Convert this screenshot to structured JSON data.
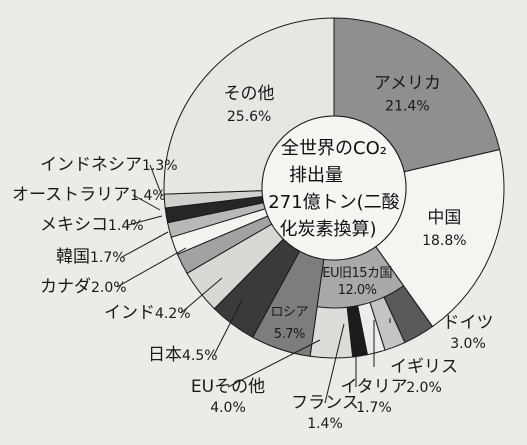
{
  "chart_data": {
    "type": "pie",
    "donut": true,
    "center_text": [
      "全世界のCO₂",
      "排出量",
      "271億トン(二酸",
      "化炭素換算)"
    ],
    "slices": [
      {
        "label": "アメリカ",
        "value": 21.4,
        "value_text": "21.4%",
        "color": "#8f8f8f"
      },
      {
        "label": "中国",
        "value": 18.8,
        "value_text": "18.8%",
        "color": "#f4f4f1"
      },
      {
        "label": "ドイツ",
        "value": 3.0,
        "value_text": "3.0%",
        "color": "#5a5a5a",
        "group": "EU旧15カ国"
      },
      {
        "label": "イギリス",
        "value": 2.0,
        "value_text": "2.0%",
        "color": "#c4c4c4",
        "group": "EU旧15カ国"
      },
      {
        "label": "イタリア",
        "value": 1.7,
        "value_text": "1.7%",
        "color": "#ececea",
        "group": "EU旧15カ国"
      },
      {
        "label": "フランス",
        "value": 1.4,
        "value_text": "1.4%",
        "color": "#1c1c1c",
        "group": "EU旧15カ国"
      },
      {
        "label": "EUその他",
        "value": 4.0,
        "value_text": "4.0%",
        "color": "#dcdcd9",
        "group": "EU旧15カ国"
      },
      {
        "label": "ロシア",
        "value": 5.7,
        "value_text": "5.7%",
        "color": "#7d7d7d"
      },
      {
        "label": "日本",
        "value": 4.5,
        "value_text": "4.5%",
        "color": "#3a3a3a"
      },
      {
        "label": "インド",
        "value": 4.2,
        "value_text": "4.2%",
        "color": "#d8d8d5"
      },
      {
        "label": "カナダ",
        "value": 2.0,
        "value_text": "2.0%",
        "color": "#a2a2a2"
      },
      {
        "label": "韓国",
        "value": 1.7,
        "value_text": "1.7%",
        "color": "#f3f3f0"
      },
      {
        "label": "メキシコ",
        "value": 1.4,
        "value_text": "1.4%",
        "color": "#b8b8b8"
      },
      {
        "label": "オーストラリア",
        "value": 1.4,
        "value_text": "1.4%",
        "color": "#262626"
      },
      {
        "label": "インドネシア",
        "value": 1.3,
        "value_text": "1.3%",
        "color": "#d0d0cd"
      },
      {
        "label": "その他",
        "value": 25.6,
        "value_text": "25.6%",
        "color": "#e6e6e3"
      }
    ],
    "group_label": {
      "name": "EU旧15カ国",
      "value_text": "12.0%",
      "color": "#a9a9a9"
    }
  }
}
